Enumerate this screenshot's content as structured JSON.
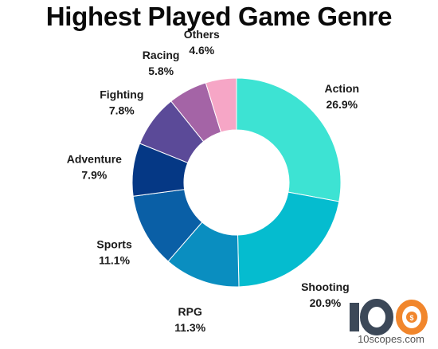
{
  "chart_data": {
    "type": "pie",
    "subtype": "donut",
    "title": "Highest Played Game Genre",
    "slices": [
      {
        "label": "Action",
        "value": 26.9,
        "display": "26.9%",
        "color": "#3de3d3"
      },
      {
        "label": "Shooting",
        "value": 20.9,
        "display": "20.9%",
        "color": "#05bccf"
      },
      {
        "label": "RPG",
        "value": 11.3,
        "display": "11.3%",
        "color": "#0a8ec0"
      },
      {
        "label": "Sports",
        "value": 11.1,
        "display": "11.1%",
        "color": "#0a5fa6"
      },
      {
        "label": "Adventure",
        "value": 7.9,
        "display": "7.9%",
        "color": "#053885"
      },
      {
        "label": "Fighting",
        "value": 7.8,
        "display": "7.8%",
        "color": "#5b4a98"
      },
      {
        "label": "Racing",
        "value": 5.8,
        "display": "5.8%",
        "color": "#a464a6"
      },
      {
        "label": "Others",
        "value": 4.6,
        "display": "4.6%",
        "color": "#f6a6c6"
      }
    ],
    "legend": "none"
  },
  "logo": {
    "text": "100",
    "url": "10scopes.com",
    "colors": {
      "dark": "#3c4858",
      "orange": "#f1862c"
    }
  }
}
